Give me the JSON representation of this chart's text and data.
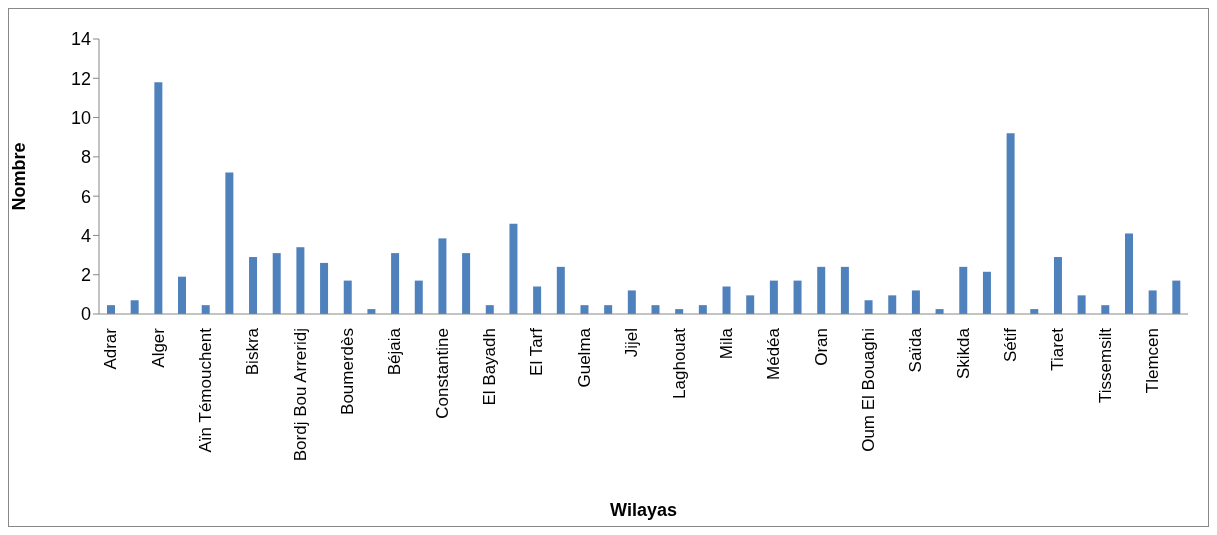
{
  "chart_data": {
    "type": "bar",
    "xlabel": "Wilayas",
    "ylabel": "Nombre",
    "categories": [
      "Adrar",
      null,
      "Alger",
      null,
      "Aïn Témouchent",
      null,
      "Biskra",
      null,
      "Bordj Bou Arreridj",
      null,
      "Boumerdès",
      null,
      "Béjaia",
      null,
      "Constantine",
      null,
      "El Bayadh",
      null,
      "El Tarf",
      null,
      "Guelma",
      null,
      "Jijel",
      null,
      "Laghouat",
      null,
      "Mila",
      null,
      "Médéa",
      null,
      "Oran",
      null,
      "Oum El Bouaghi",
      null,
      "Saïda",
      null,
      "Skikda",
      null,
      "Sétif",
      null,
      "Tiaret",
      null,
      "Tissemsilt",
      null,
      "Tlemcen",
      null
    ],
    "values": [
      0.45,
      0.7,
      11.8,
      1.9,
      0.45,
      7.2,
      2.9,
      3.1,
      3.4,
      2.6,
      1.7,
      0.25,
      3.1,
      1.7,
      3.85,
      3.1,
      0.45,
      4.6,
      1.4,
      2.4,
      0.45,
      0.45,
      1.2,
      0.45,
      0.25,
      0.45,
      1.4,
      0.95,
      1.7,
      1.7,
      2.4,
      2.4,
      0.7,
      0.95,
      1.2,
      0.25,
      2.4,
      2.15,
      9.2,
      0.25,
      2.9,
      0.95,
      0.45,
      4.1,
      1.2,
      1.7
    ],
    "color": "#4f81bd",
    "ylim": [
      0,
      14
    ],
    "yticks": [
      0,
      2,
      4,
      6,
      8,
      10,
      12,
      14
    ],
    "grid": false,
    "legend": false
  }
}
